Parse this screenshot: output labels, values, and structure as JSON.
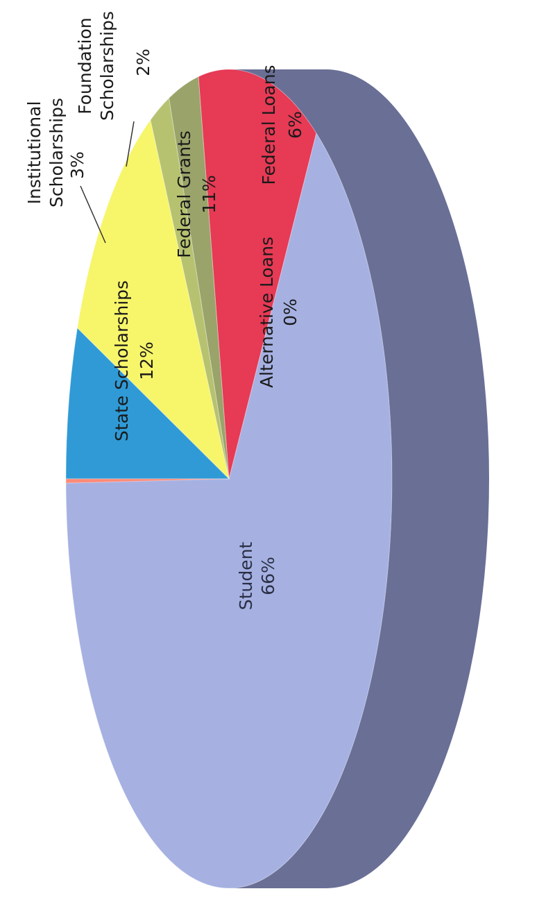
{
  "chart_data": {
    "type": "pie",
    "title": "",
    "orientation": "rotated-90-clockwise",
    "categories": [
      "Student",
      "State Scholarships",
      "Institutional Scholarships",
      "Foundation Scholarships",
      "Federal Grants",
      "Federal Loans",
      "Alternative Loans"
    ],
    "values": [
      66,
      12,
      3,
      2,
      11,
      6,
      0
    ],
    "colors": {
      "Student": "#a6b1e2",
      "State Scholarships": "#e63a55",
      "Institutional Scholarships": "#9aa36a",
      "Foundation Scholarships": "#b6c270",
      "Federal Grants": "#f7f56a",
      "Federal Loans": "#2f9ad6",
      "Alternative Loans": "#ff8a78",
      "side": "#6a6f96"
    },
    "data_labels": [
      {
        "name": "Student",
        "line1": "Student",
        "line2": "66%"
      },
      {
        "name": "State Scholarships",
        "line1": "State Scholarships",
        "line2": "12%"
      },
      {
        "name": "Institutional Scholarships",
        "line1a": "Institutional",
        "line1b": "Scholarships",
        "line2": "3%"
      },
      {
        "name": "Foundation Scholarships",
        "line1a": "Foundation",
        "line1b": "Scholarships",
        "line2": "2%"
      },
      {
        "name": "Federal Grants",
        "line1": "Federal Grants",
        "line2": "11%"
      },
      {
        "name": "Federal Loans",
        "line1": "Federal Loans",
        "line2": "6%"
      },
      {
        "name": "Alternative Loans",
        "line1": "Alternative Loans",
        "line2": "0%"
      }
    ]
  }
}
